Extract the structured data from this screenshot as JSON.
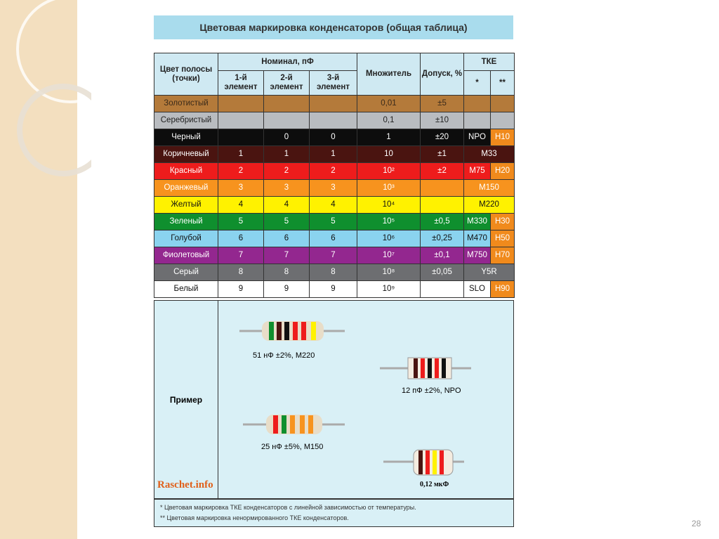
{
  "title": "Цветовая маркировка конденсаторов (общая таблица)",
  "table": {
    "headers": {
      "color": "Цвет полосы (точки)",
      "nominal": "Номинал, пФ",
      "elements": [
        "1-й элемент",
        "2-й элемент",
        "3-й элемент"
      ],
      "multiplier": "Множитель",
      "tolerance": "Допуск, %",
      "tke": "ТКЕ",
      "tke_cols": [
        "*",
        "**"
      ]
    },
    "rows": [
      {
        "name": "Золотистый",
        "color": "#b47a3a",
        "text": "#3a2a1a",
        "cells": [
          null,
          null,
          null,
          "0,01",
          "±5"
        ],
        "tke": [
          null,
          null
        ]
      },
      {
        "name": "Серебристый",
        "color": "#b9bcc0",
        "text": "#222",
        "cells": [
          null,
          null,
          null,
          "0,1",
          "±10"
        ],
        "tke": [
          null,
          null
        ]
      },
      {
        "name": "Черный",
        "color": "#0d0d0d",
        "text": "#fff",
        "cells": [
          null,
          "0",
          "0",
          "1",
          "±20"
        ],
        "tke": [
          "NPO",
          "Н10"
        ]
      },
      {
        "name": "Коричневый",
        "color": "#4a1410",
        "text": "#fff",
        "cells": [
          "1",
          "1",
          "1",
          "10",
          "±1"
        ],
        "tke": [
          "М33"
        ]
      },
      {
        "name": "Красный",
        "color": "#ee1c1c",
        "text": "#fff",
        "cells": [
          "2",
          "2",
          "2",
          "10²",
          "±2"
        ],
        "tke": [
          "М75",
          "Н20"
        ]
      },
      {
        "name": "Оранжевый",
        "color": "#f7931e",
        "text": "#fff",
        "cells": [
          "3",
          "3",
          "3",
          "10³",
          null
        ],
        "tke": [
          "М150"
        ]
      },
      {
        "name": "Желтый",
        "color": "#fff200",
        "text": "#111",
        "cells": [
          "4",
          "4",
          "4",
          "10⁴",
          null
        ],
        "tke": [
          "М220"
        ]
      },
      {
        "name": "Зеленый",
        "color": "#0f8f2e",
        "text": "#fff",
        "cells": [
          "5",
          "5",
          "5",
          "10⁵",
          "±0,5"
        ],
        "tke": [
          "М330",
          "Н30"
        ]
      },
      {
        "name": "Голубой",
        "color": "#8ad3ef",
        "text": "#111",
        "cells": [
          "6",
          "6",
          "6",
          "10⁶",
          "±0,25"
        ],
        "tke": [
          "М470",
          "Н50"
        ]
      },
      {
        "name": "Фиолетовый",
        "color": "#93278f",
        "text": "#fff",
        "cells": [
          "7",
          "7",
          "7",
          "10⁷",
          "±0,1"
        ],
        "tke": [
          "М750",
          "Н70"
        ]
      },
      {
        "name": "Серый",
        "color": "#6d6e71",
        "text": "#fff",
        "cells": [
          "8",
          "8",
          "8",
          "10⁸",
          "±0,05"
        ],
        "tke": [
          "Y5R"
        ]
      },
      {
        "name": "Белый",
        "color": "#ffffff",
        "text": "#111",
        "cells": [
          "9",
          "9",
          "9",
          "10⁹",
          null
        ],
        "tke": [
          "SLO",
          "Н90"
        ]
      }
    ]
  },
  "example": {
    "label": "Пример",
    "captions": [
      "51 нФ ±2%, М220",
      "12 пФ ±2%, NPO",
      "25 нФ ±5%, М150",
      "0,12 мкФ"
    ],
    "watermark": "Raschet.info"
  },
  "footnotes": [
    "* Цветовая маркировка ТКЕ конденсаторов с линейной зависимостью от температуры.",
    "** Цветовая маркировка ненормированного ТКЕ конденсаторов."
  ],
  "page_number": "28"
}
